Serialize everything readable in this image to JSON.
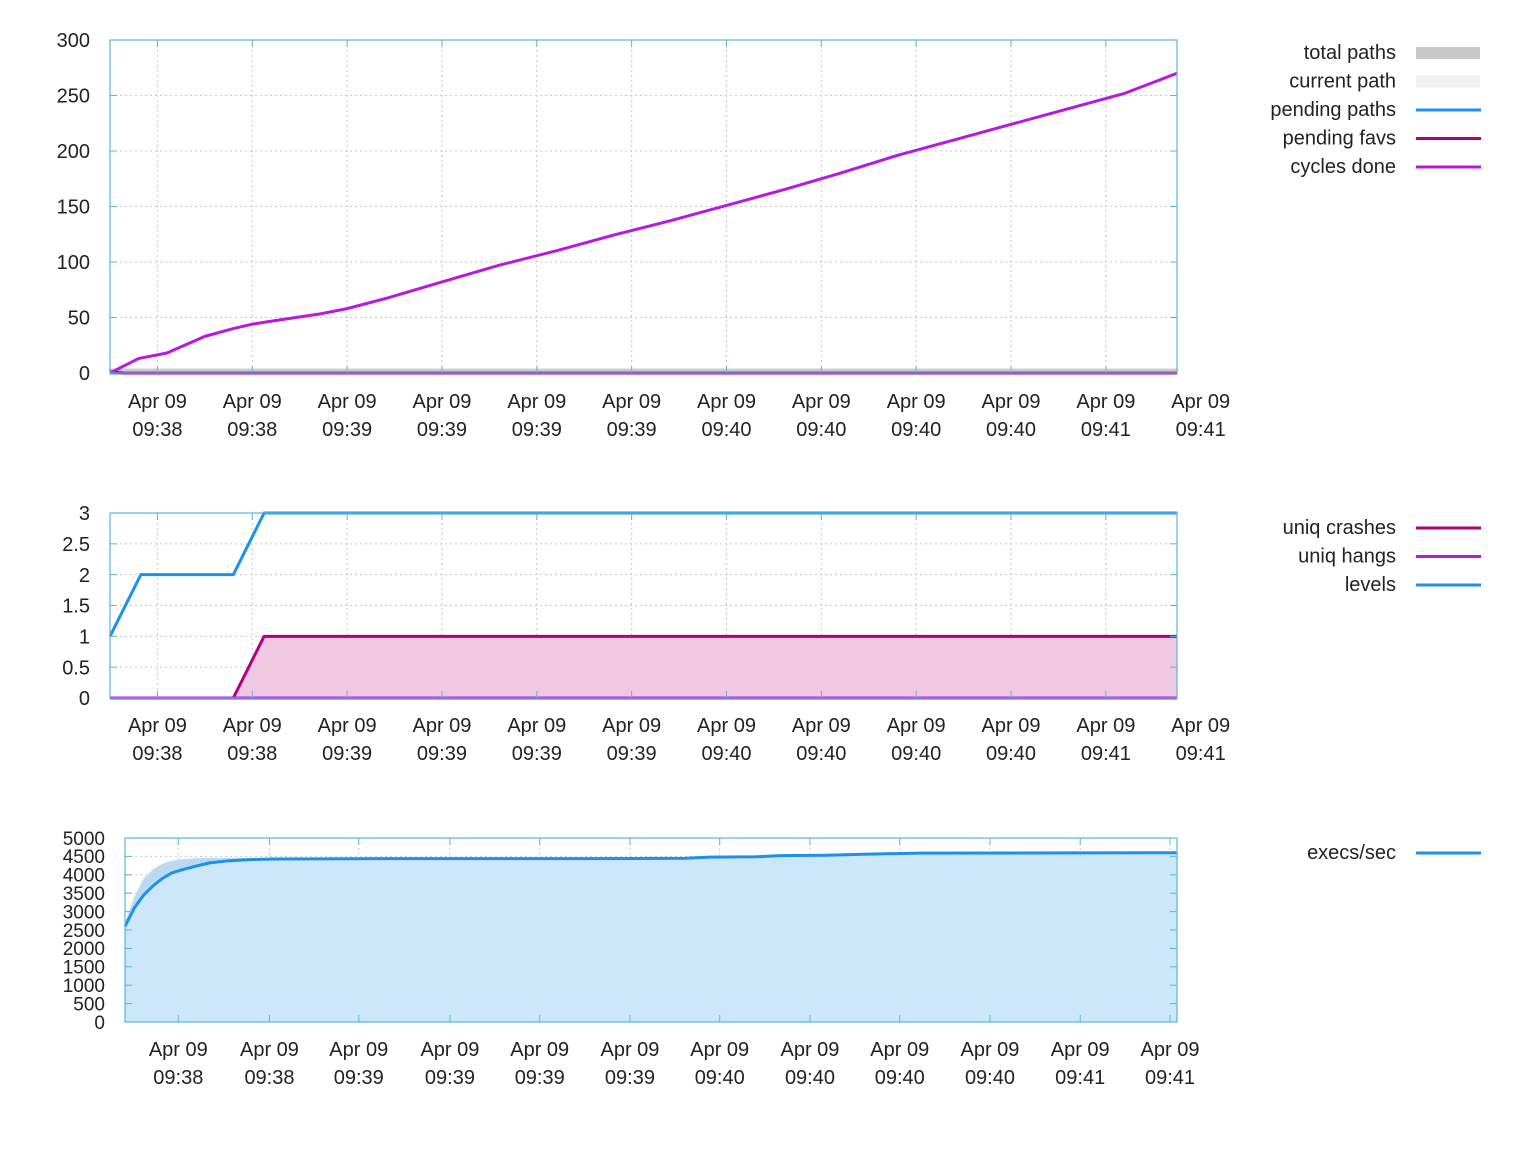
{
  "colors": {
    "frame": "#5ab4e0",
    "grid": "#c8c8c8",
    "total_paths": "#c8c8c8",
    "current_path": "#f1f1f1",
    "pending_paths": "#1e90ea",
    "pending_favs": "#b0007a",
    "cycles_done": "#b819e0",
    "uniq_crashes": "#b0007a",
    "uniq_crashes_fill": "#f0c8e2",
    "uniq_hangs": "#b819e0",
    "levels": "#1e90ea",
    "execs": "#1e90ea",
    "execs_fill": "#cce6fa",
    "execs_fill_light": "#bcd9f2"
  },
  "chart_data": [
    {
      "type": "line",
      "title": "",
      "xlabel": "",
      "ylabel": "",
      "ylim": [
        0,
        300
      ],
      "yticks": [
        "0",
        "50",
        "100",
        "150",
        "200",
        "250",
        "300"
      ],
      "xlim": [
        0,
        225
      ],
      "xticks": [
        {
          "t": 10,
          "date": "Apr 09",
          "time": "09:38"
        },
        {
          "t": 30,
          "date": "Apr 09",
          "time": "09:38"
        },
        {
          "t": 50,
          "date": "Apr 09",
          "time": "09:39"
        },
        {
          "t": 70,
          "date": "Apr 09",
          "time": "09:39"
        },
        {
          "t": 90,
          "date": "Apr 09",
          "time": "09:39"
        },
        {
          "t": 110,
          "date": "Apr 09",
          "time": "09:39"
        },
        {
          "t": 130,
          "date": "Apr 09",
          "time": "09:40"
        },
        {
          "t": 150,
          "date": "Apr 09",
          "time": "09:40"
        },
        {
          "t": 170,
          "date": "Apr 09",
          "time": "09:40"
        },
        {
          "t": 190,
          "date": "Apr 09",
          "time": "09:40"
        },
        {
          "t": 210,
          "date": "Apr 09",
          "time": "09:41"
        },
        {
          "t": 230,
          "date": "Apr 09",
          "time": "09:41"
        }
      ],
      "grid": true,
      "legend_position": "right",
      "series": [
        {
          "name": "total paths",
          "style": "area",
          "colorKey": "total_paths",
          "x": [
            0,
            225
          ],
          "y": [
            3,
            3
          ]
        },
        {
          "name": "current path",
          "style": "area",
          "colorKey": "current_path",
          "x": [
            0,
            225
          ],
          "y": [
            1,
            1
          ]
        },
        {
          "name": "pending paths",
          "style": "line",
          "colorKey": "pending_paths",
          "x": [
            0,
            225
          ],
          "y": [
            0,
            0
          ]
        },
        {
          "name": "pending favs",
          "style": "line",
          "colorKey": "pending_favs",
          "x": [
            0,
            3,
            225
          ],
          "y": [
            1,
            0,
            0
          ]
        },
        {
          "name": "cycles done",
          "style": "line",
          "colorKey": "cycles_done",
          "x": [
            0,
            6,
            12,
            20,
            26,
            30,
            36,
            44,
            50,
            58,
            70,
            82,
            94,
            106,
            118,
            130,
            142,
            154,
            166,
            178,
            190,
            202,
            214,
            225
          ],
          "y": [
            0,
            13,
            18,
            33,
            40,
            44,
            48,
            53,
            58,
            67,
            82,
            97,
            110,
            124,
            137,
            151,
            165,
            180,
            196,
            210,
            224,
            238,
            252,
            270
          ]
        }
      ]
    },
    {
      "type": "line",
      "title": "",
      "xlabel": "",
      "ylabel": "",
      "ylim": [
        0,
        3
      ],
      "yticks": [
        "0",
        "0.5",
        "1",
        "1.5",
        "2",
        "2.5",
        "3"
      ],
      "xlim": [
        0,
        225
      ],
      "xticks": [
        {
          "t": 10,
          "date": "Apr 09",
          "time": "09:38"
        },
        {
          "t": 30,
          "date": "Apr 09",
          "time": "09:38"
        },
        {
          "t": 50,
          "date": "Apr 09",
          "time": "09:39"
        },
        {
          "t": 70,
          "date": "Apr 09",
          "time": "09:39"
        },
        {
          "t": 90,
          "date": "Apr 09",
          "time": "09:39"
        },
        {
          "t": 110,
          "date": "Apr 09",
          "time": "09:39"
        },
        {
          "t": 130,
          "date": "Apr 09",
          "time": "09:40"
        },
        {
          "t": 150,
          "date": "Apr 09",
          "time": "09:40"
        },
        {
          "t": 170,
          "date": "Apr 09",
          "time": "09:40"
        },
        {
          "t": 190,
          "date": "Apr 09",
          "time": "09:40"
        },
        {
          "t": 210,
          "date": "Apr 09",
          "time": "09:41"
        },
        {
          "t": 230,
          "date": "Apr 09",
          "time": "09:41"
        }
      ],
      "grid": true,
      "legend_position": "right",
      "series": [
        {
          "name": "uniq crashes",
          "style": "filled",
          "colorKey": "uniq_crashes",
          "fillKey": "uniq_crashes_fill",
          "x": [
            0,
            26,
            32.5,
            225
          ],
          "y": [
            0,
            0,
            1,
            1
          ]
        },
        {
          "name": "uniq hangs",
          "style": "line",
          "colorKey": "uniq_hangs",
          "x": [
            0,
            225
          ],
          "y": [
            0,
            0
          ]
        },
        {
          "name": "levels",
          "style": "line",
          "colorKey": "levels",
          "x": [
            0,
            6.5,
            26,
            32.5,
            225
          ],
          "y": [
            1,
            2,
            2,
            3,
            3
          ]
        }
      ]
    },
    {
      "type": "area",
      "title": "",
      "xlabel": "",
      "ylabel": "",
      "ylim": [
        0,
        5000
      ],
      "yticks": [
        "0",
        "500",
        "1000",
        "1500",
        "2000",
        "2500",
        "3000",
        "3500",
        "4000",
        "4500",
        "5000"
      ],
      "xlim": [
        0,
        225
      ],
      "xticks": [
        {
          "t": 11.4,
          "date": "Apr 09",
          "time": "09:38"
        },
        {
          "t": 30.9,
          "date": "Apr 09",
          "time": "09:38"
        },
        {
          "t": 50.0,
          "date": "Apr 09",
          "time": "09:39"
        },
        {
          "t": 69.5,
          "date": "Apr 09",
          "time": "09:39"
        },
        {
          "t": 88.7,
          "date": "Apr 09",
          "time": "09:39"
        },
        {
          "t": 108.0,
          "date": "Apr 09",
          "time": "09:39"
        },
        {
          "t": 127.2,
          "date": "Apr 09",
          "time": "09:40"
        },
        {
          "t": 146.5,
          "date": "Apr 09",
          "time": "09:40"
        },
        {
          "t": 165.7,
          "date": "Apr 09",
          "time": "09:40"
        },
        {
          "t": 185.0,
          "date": "Apr 09",
          "time": "09:40"
        },
        {
          "t": 204.3,
          "date": "Apr 09",
          "time": "09:41"
        },
        {
          "t": 223.5,
          "date": "Apr 09",
          "time": "09:41"
        }
      ],
      "grid": true,
      "legend_position": "right",
      "envelope": {
        "x": [
          0,
          2,
          4,
          6,
          8,
          10,
          12,
          15,
          18,
          225
        ],
        "y": [
          2700,
          3400,
          3900,
          4150,
          4300,
          4380,
          4420,
          4450,
          4460,
          4460
        ]
      },
      "series": [
        {
          "name": "execs/sec",
          "style": "filled",
          "colorKey": "execs",
          "fillKey": "execs_fill",
          "x": [
            0,
            2,
            4,
            6,
            8,
            10,
            12,
            15,
            18,
            22,
            26,
            32,
            60,
            100,
            120,
            125,
            135,
            140,
            150,
            158,
            170,
            225
          ],
          "y": [
            2600,
            3100,
            3450,
            3700,
            3900,
            4050,
            4130,
            4230,
            4320,
            4380,
            4410,
            4430,
            4440,
            4440,
            4450,
            4480,
            4490,
            4520,
            4530,
            4560,
            4590,
            4600
          ]
        }
      ]
    }
  ]
}
